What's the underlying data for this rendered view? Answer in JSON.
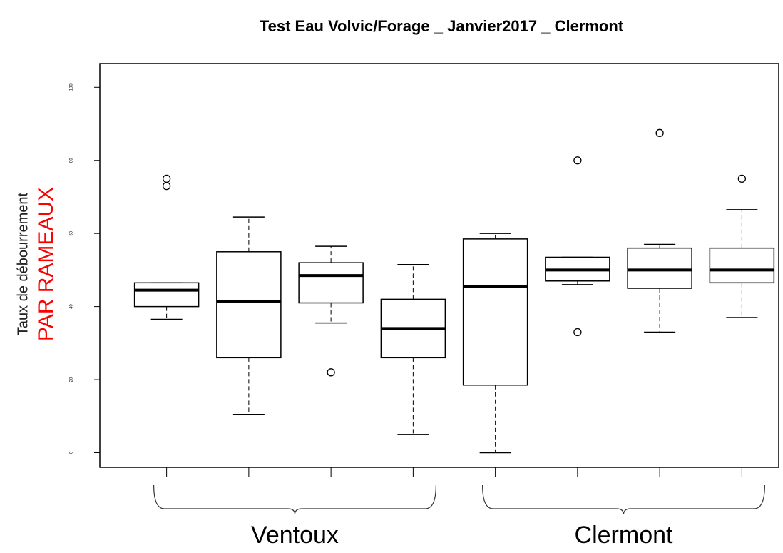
{
  "chart_data": {
    "type": "box",
    "title": "Test Eau Volvic/Forage _ Janvier2017 _ Clermont",
    "ylabel": "Taux de débourrement",
    "ylabel_emphasis": "PAR RAMEAUX",
    "ylabel_emphasis_color": "#ff0000",
    "ylim": [
      -4,
      106.5
    ],
    "yticks": [
      0,
      20,
      40,
      60,
      80,
      100
    ],
    "color": "#000000",
    "boxes": [
      {
        "whisker_low": 36.5,
        "q1": 40,
        "median": 44.5,
        "q3": 46.5,
        "whisker_high": 46.5,
        "outliers": [
          73,
          75
        ]
      },
      {
        "whisker_low": 10.5,
        "q1": 26,
        "median": 41.5,
        "q3": 55,
        "whisker_high": 64.5,
        "outliers": []
      },
      {
        "whisker_low": 35.5,
        "q1": 41,
        "median": 48.5,
        "q3": 52,
        "whisker_high": 56.5,
        "outliers": [
          22
        ]
      },
      {
        "whisker_low": 5,
        "q1": 26,
        "median": 34,
        "q3": 42,
        "whisker_high": 51.5,
        "outliers": []
      },
      {
        "whisker_low": 0,
        "q1": 18.5,
        "median": 45.5,
        "q3": 58.5,
        "whisker_high": 60,
        "outliers": []
      },
      {
        "whisker_low": 46,
        "q1": 47,
        "median": 50,
        "q3": 53.5,
        "whisker_high": 53.5,
        "outliers": [
          80,
          33
        ]
      },
      {
        "whisker_low": 33,
        "q1": 45,
        "median": 50,
        "q3": 56,
        "whisker_high": 57,
        "outliers": [
          87.5
        ]
      },
      {
        "whisker_low": 37,
        "q1": 46.5,
        "median": 50,
        "q3": 56,
        "whisker_high": 66.5,
        "outliers": [
          75
        ]
      }
    ],
    "group_labels": [
      "Ventoux",
      "Clermont"
    ]
  }
}
